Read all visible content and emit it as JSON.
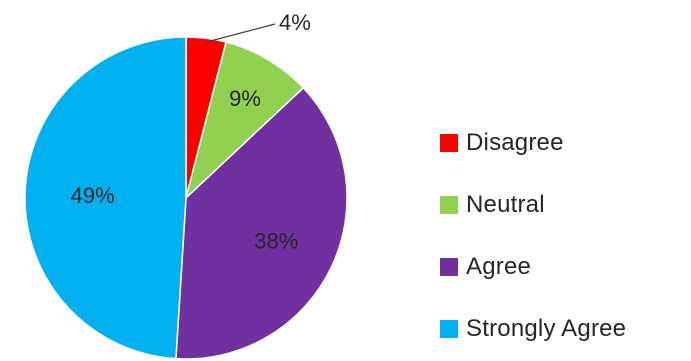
{
  "chart_data": {
    "type": "pie",
    "categories": [
      "Disagree",
      "Neutral",
      "Agree",
      "Strongly Agree"
    ],
    "values": [
      4,
      9,
      38,
      49
    ],
    "labels": [
      "4%",
      "9%",
      "38%",
      "49%"
    ],
    "colors": [
      "#ff0000",
      "#92d050",
      "#7030a0",
      "#00b0f0"
    ],
    "start_angle": "12 o'clock",
    "direction": "clockwise",
    "legend_position": "right"
  }
}
